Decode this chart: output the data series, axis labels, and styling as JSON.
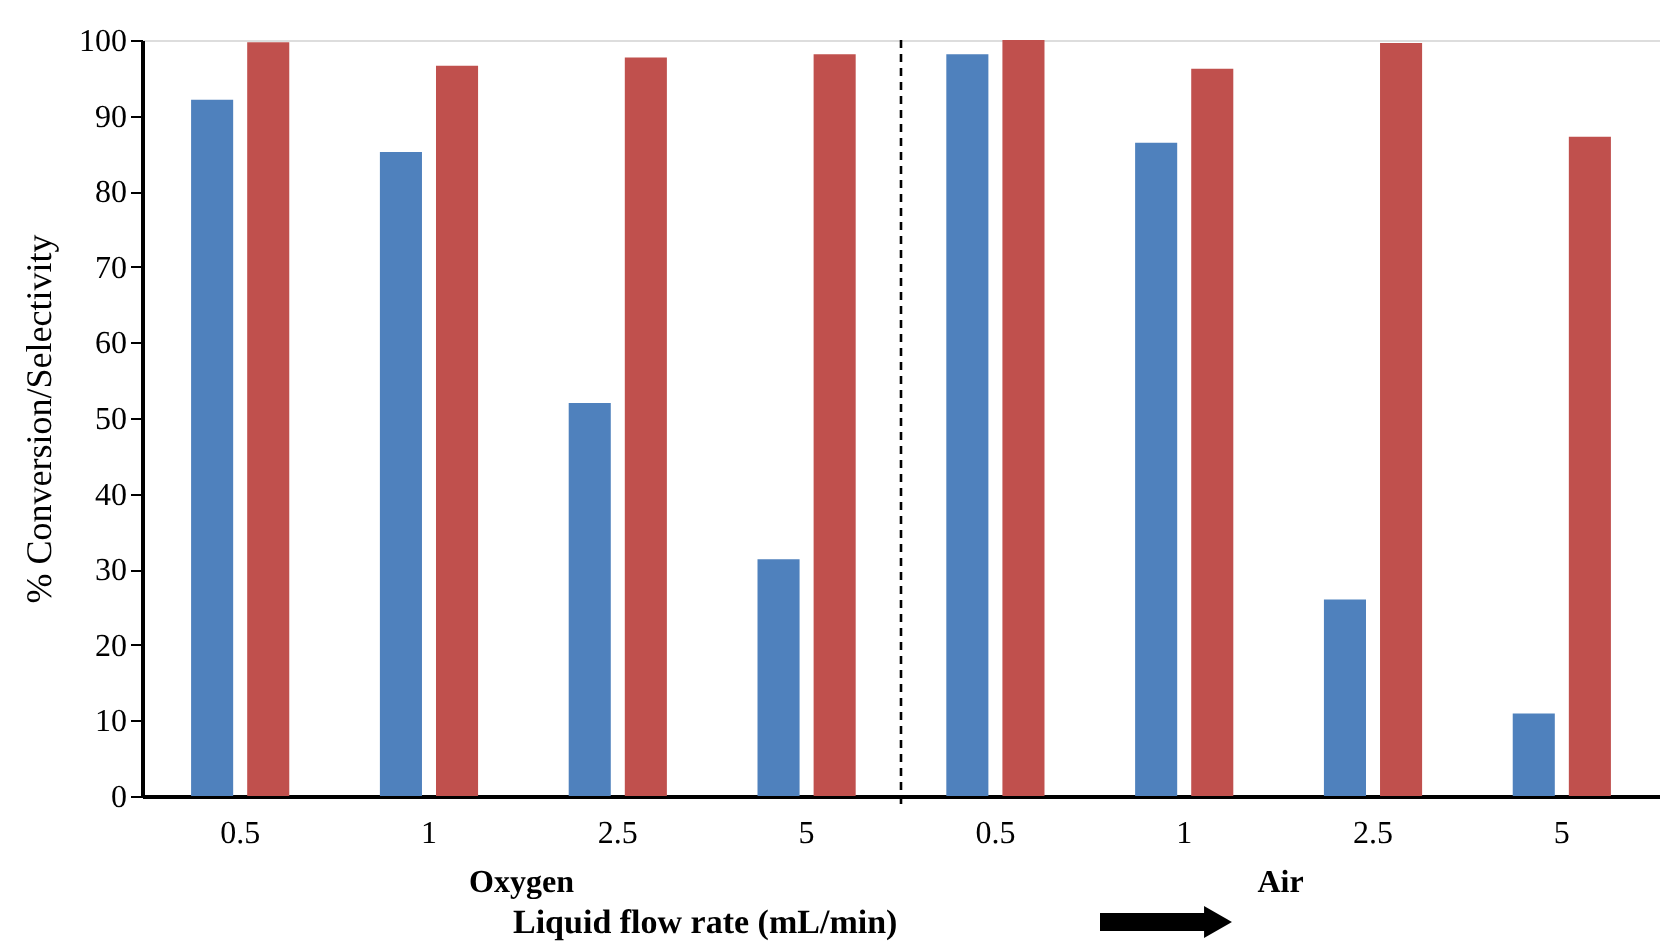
{
  "chart_data": {
    "type": "bar",
    "categories": [
      "0.5",
      "1",
      "2.5",
      "5",
      "0.5",
      "1",
      "2.5",
      "5"
    ],
    "series": [
      {
        "color": "#4f81bd",
        "values": [
          92.1,
          85.2,
          52.0,
          31.3,
          98.1,
          86.4,
          26.0,
          10.9
        ]
      },
      {
        "color": "#c0504d",
        "values": [
          99.7,
          96.6,
          97.7,
          98.1,
          100,
          96.2,
          99.6,
          87.2
        ]
      }
    ],
    "xlabel": "Liquid flow rate (mL/min)",
    "ylabel": "% Conversion/Selectivity",
    "annotations": [
      "Oxygen",
      "Air"
    ],
    "ylim": [
      0,
      100
    ],
    "yticks": [
      0,
      10,
      20,
      30,
      40,
      50,
      60,
      70,
      80,
      90,
      100
    ],
    "grid": false,
    "legend": false
  }
}
